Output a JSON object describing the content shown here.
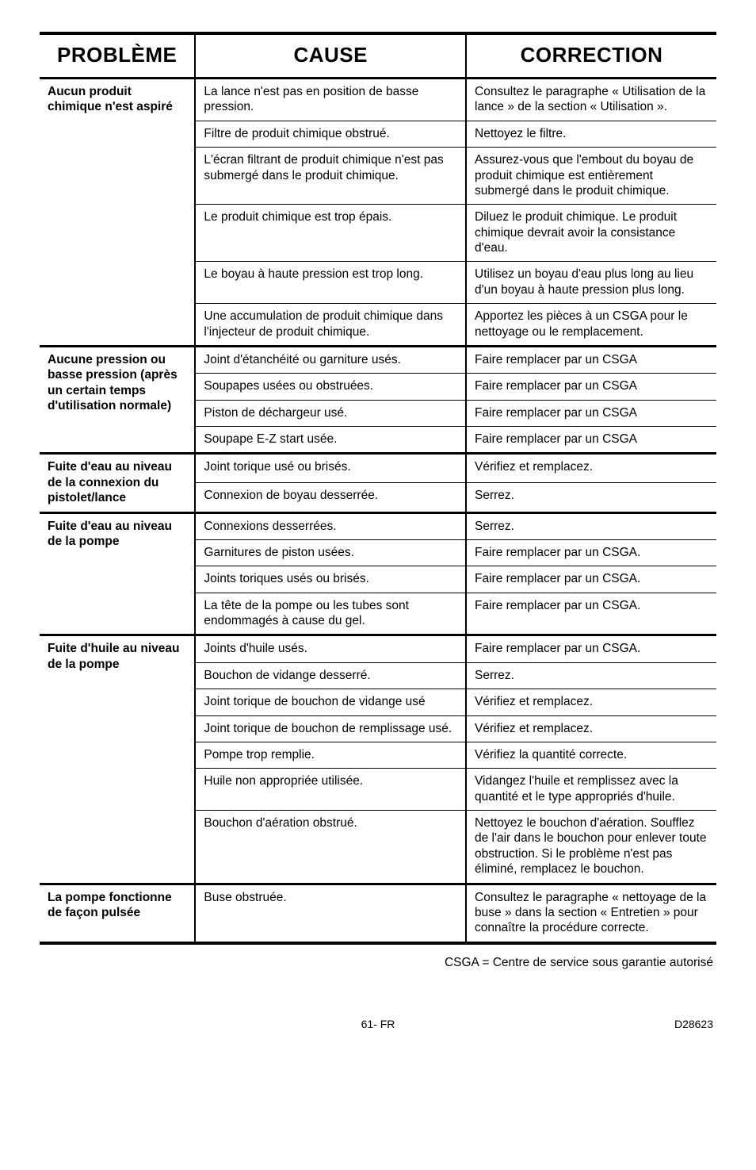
{
  "table": {
    "headers": {
      "probleme": "PROBLÈME",
      "cause": "CAUSE",
      "correction": "CORRECTION"
    },
    "groups": [
      {
        "problem": "Aucun produit chimique n'est aspiré",
        "rows": [
          {
            "cause": "La lance n'est pas en position de basse pression.",
            "correction": "Consultez le paragraphe « Utilisation de la lance » de la section « Utilisation »."
          },
          {
            "cause": "Filtre de produit chimique obstrué.",
            "correction": "Nettoyez le filtre."
          },
          {
            "cause": "L'écran filtrant de produit chimique n'est pas submergé dans le produit chimique.",
            "correction": "Assurez-vous que l'embout du boyau de produit chimique est entièrement submergé dans le produit chimique."
          },
          {
            "cause": "Le produit chimique est trop épais.",
            "correction": "Diluez le produit chimique. Le produit chimique devrait avoir la consistance d'eau."
          },
          {
            "cause": "Le boyau à haute pression est trop long.",
            "correction": "Utilisez un boyau d'eau plus long au lieu d'un boyau à haute pression plus long."
          },
          {
            "cause": "Une accumulation de produit chimique dans l'injecteur de produit chimique.",
            "correction": "Apportez les pièces à un CSGA pour le nettoyage ou le remplacement."
          }
        ]
      },
      {
        "problem": "Aucune pression ou basse pression (après un certain temps d'utilisation normale)",
        "rows": [
          {
            "cause": "Joint d'étanchéité ou garniture usés.",
            "correction": "Faire remplacer par un CSGA"
          },
          {
            "cause": "Soupapes usées ou obstruées.",
            "correction": "Faire remplacer par un CSGA"
          },
          {
            "cause": "Piston de déchargeur usé.",
            "correction": "Faire remplacer par un CSGA"
          },
          {
            "cause": "Soupape E-Z start usée.",
            "correction": "Faire remplacer par un CSGA"
          }
        ]
      },
      {
        "problem": "Fuite d'eau au niveau de la connexion du pistolet/lance",
        "rows": [
          {
            "cause": "Joint torique usé ou brisés.",
            "correction": "Vérifiez et remplacez."
          },
          {
            "cause": "Connexion de boyau desserrée.",
            "correction": "Serrez."
          }
        ]
      },
      {
        "problem": "Fuite d'eau au niveau de la pompe",
        "rows": [
          {
            "cause": "Connexions desserrées.",
            "correction": "Serrez."
          },
          {
            "cause": "Garnitures de piston usées.",
            "correction": "Faire remplacer par un CSGA."
          },
          {
            "cause": "Joints toriques usés ou brisés.",
            "correction": "Faire remplacer par un CSGA."
          },
          {
            "cause": "La tête de la pompe ou les tubes sont endommagés à cause du gel.",
            "correction": "Faire remplacer par un CSGA."
          }
        ]
      },
      {
        "problem": "Fuite d'huile au niveau de la pompe",
        "rows": [
          {
            "cause": "Joints d'huile usés.",
            "correction": "Faire remplacer par un CSGA."
          },
          {
            "cause": "Bouchon de vidange desserré.",
            "correction": "Serrez."
          },
          {
            "cause": "Joint torique de bouchon de vidange usé",
            "correction": "Vérifiez et remplacez."
          },
          {
            "cause": "Joint torique de bouchon de remplissage usé.",
            "correction": "Vérifiez et remplacez."
          },
          {
            "cause": "Pompe trop remplie.",
            "correction": "Vérifiez la quantité correcte."
          },
          {
            "cause": "Huile non appropriée utilisée.",
            "correction": "Vidangez l'huile et remplissez avec la quantité et le type appropriés d'huile."
          },
          {
            "cause": "Bouchon d'aération obstrué.",
            "correction": "Nettoyez le bouchon d'aération. Soufflez de l'air dans le bouchon pour enlever toute obstruction. Si le problème n'est pas éliminé, remplacez le bouchon."
          }
        ]
      },
      {
        "problem": "La pompe fonctionne de façon pulsée",
        "rows": [
          {
            "cause": "Buse obstruée.",
            "correction": "Consultez le paragraphe « nettoyage de la buse » dans la section « Entretien » pour connaître la procédure correcte."
          }
        ]
      }
    ]
  },
  "footnote": "CSGA = Centre de service sous garantie autorisé",
  "footer": {
    "page": "61- FR",
    "docnum": "D28623"
  }
}
